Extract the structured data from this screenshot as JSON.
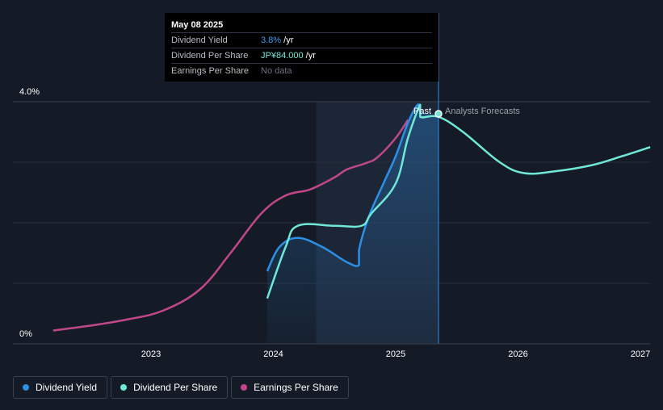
{
  "tooltip": {
    "date": "May 08 2025",
    "rows": [
      {
        "label": "Dividend Yield",
        "value": "3.8%",
        "unit": " /yr"
      },
      {
        "label": "Dividend Per Share",
        "value": "JP¥84.000",
        "unit": " /yr"
      },
      {
        "label": "Earnings Per Share",
        "value": "No data",
        "unit": ""
      }
    ]
  },
  "labels": {
    "past": "Past",
    "forecast": "Analysts Forecasts"
  },
  "colors": {
    "background": "#151b26",
    "dividend_yield": "#2e8fe6",
    "dividend_per_share": "#6fe8d8",
    "earnings_per_share": "#c0488a"
  },
  "legend": [
    {
      "label": "Dividend Yield",
      "color": "#2e8fe6"
    },
    {
      "label": "Dividend Per Share",
      "color": "#6fe8d8"
    },
    {
      "label": "Earnings Per Share",
      "color": "#c0488a"
    }
  ],
  "chart_data": {
    "type": "line",
    "y_tick_labels": [
      "4.0%",
      "0%"
    ],
    "y_range": [
      0,
      4.0
    ],
    "x_tick_labels": [
      "2023",
      "2024",
      "2025",
      "2026",
      "2027"
    ],
    "x_range": [
      2022.2,
      2027.08
    ],
    "grid": true,
    "past_end": 2025.35,
    "shaded_start": 2024.35,
    "highlight": {
      "x": 2025.35,
      "y": 3.8,
      "series": "Dividend Per Share"
    },
    "series": [
      {
        "name": "Dividend Yield",
        "x": [
          2023.95,
          2024.05,
          2024.2,
          2024.4,
          2024.6,
          2024.7,
          2024.7,
          2024.78,
          2024.9,
          2025.0,
          2025.1,
          2025.18,
          2025.2
        ],
        "values": [
          1.2,
          1.6,
          1.75,
          1.6,
          1.35,
          1.3,
          1.55,
          2.1,
          2.65,
          3.1,
          3.65,
          3.95,
          3.85
        ]
      },
      {
        "name": "Dividend Per Share",
        "x": [
          2023.95,
          2024.1,
          2024.2,
          2024.5,
          2024.72,
          2024.8,
          2025.0,
          2025.1,
          2025.2,
          2025.2,
          2025.35,
          2025.55,
          2025.85,
          2026.05,
          2026.3,
          2026.6,
          2026.85,
          2027.08
        ],
        "values": [
          0.75,
          1.6,
          1.95,
          1.95,
          1.95,
          2.15,
          2.65,
          3.4,
          3.95,
          3.75,
          3.75,
          3.5,
          3.0,
          2.82,
          2.85,
          2.95,
          3.1,
          3.25
        ]
      },
      {
        "name": "Earnings Per Share",
        "x": [
          2022.2,
          2022.5,
          2022.8,
          2023.1,
          2023.4,
          2023.65,
          2023.9,
          2024.1,
          2024.3,
          2024.5,
          2024.6,
          2024.75,
          2024.85,
          2025.0,
          2025.1
        ],
        "values": [
          0.22,
          0.3,
          0.4,
          0.55,
          0.9,
          1.5,
          2.15,
          2.45,
          2.55,
          2.75,
          2.88,
          2.98,
          3.08,
          3.4,
          3.7
        ]
      }
    ]
  }
}
